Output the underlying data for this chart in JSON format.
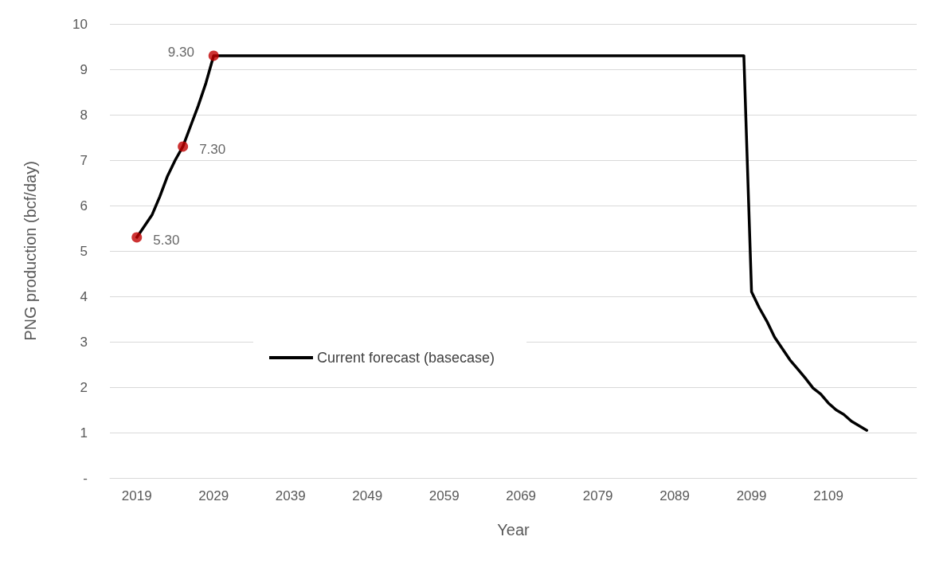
{
  "chart_data": {
    "type": "line",
    "xlabel": "Year",
    "ylabel": "PNG production (bcf/day)",
    "xlim": [
      2015.5,
      2120.5
    ],
    "xticks": [
      2019,
      2029,
      2039,
      2049,
      2059,
      2069,
      2079,
      2089,
      2099,
      2109
    ],
    "ylim": [
      0,
      10
    ],
    "yticks": [
      {
        "value": 0,
        "label": "-"
      },
      1,
      2,
      3,
      4,
      5,
      6,
      7,
      8,
      9,
      10
    ],
    "grid": "y",
    "legend": "left",
    "series": [
      {
        "name": "Current forecast (basecase)",
        "color": "#000000",
        "marker": "none",
        "x": [
          2019,
          2020,
          2021,
          2022,
          2023,
          2024,
          2025,
          2026,
          2027,
          2028,
          2029,
          2098,
          2099,
          2100,
          2101,
          2102,
          2103,
          2104,
          2105,
          2106,
          2107,
          2108,
          2109,
          2110,
          2111,
          2112,
          2113,
          2114
        ],
        "values": [
          5.3,
          5.55,
          5.8,
          6.2,
          6.65,
          7.0,
          7.3,
          7.75,
          8.2,
          8.7,
          9.3,
          9.3,
          4.1,
          3.75,
          3.45,
          3.1,
          2.85,
          2.6,
          2.4,
          2.2,
          1.98,
          1.85,
          1.65,
          1.5,
          1.4,
          1.25,
          1.15,
          1.05
        ]
      },
      {
        "type": "scatter",
        "color": "#c00000",
        "marker": "circle",
        "x": [
          2019,
          2025,
          2029
        ],
        "values": [
          5.3,
          7.3,
          9.3
        ],
        "value_labels": [
          "5.30",
          "7.30",
          "9.30"
        ]
      }
    ]
  }
}
